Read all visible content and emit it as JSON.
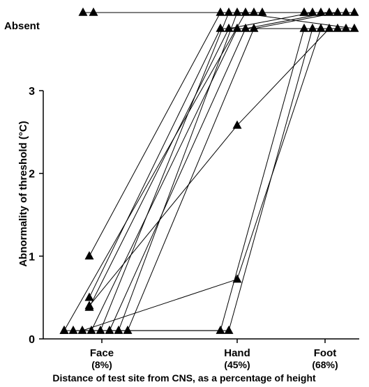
{
  "chart_data": {
    "type": "line",
    "title": "",
    "xlabel": "Distance of test site from CNS, as a percentage of height",
    "ylabel": "Abnormality of threshold (°C)",
    "x_categories": [
      {
        "name": "Face",
        "pct": "(8%)",
        "x": 8
      },
      {
        "name": "Hand",
        "pct": "(45%)",
        "x": 45
      },
      {
        "name": "Foot",
        "pct": "(68%)",
        "x": 68
      }
    ],
    "y_ticks": [
      "0",
      "1",
      "2",
      "3"
    ],
    "ylim": [
      0,
      3
    ],
    "absent_label": "Absent",
    "absent_levels": [
      "Absent-high",
      "Absent-low"
    ],
    "marker": "triangle",
    "color": "#000000",
    "subjects": [
      {
        "face": 0.1,
        "hand": 0.1,
        "foot": "Absent-low"
      },
      {
        "face": 0.1,
        "hand": 0.1,
        "foot": "Absent-low"
      },
      {
        "face": 0.1,
        "hand": 0.72,
        "foot": "Absent-low"
      },
      {
        "face": 0.4,
        "hand": 2.58,
        "foot": "Absent-low"
      },
      {
        "face": 1.0,
        "hand": "Absent-high",
        "foot": "Absent-high"
      },
      {
        "face": 0.5,
        "hand": "Absent-low",
        "foot": "Absent-low"
      },
      {
        "face": 0.38,
        "hand": "Absent-low",
        "foot": "Absent-high"
      },
      {
        "face": 0.1,
        "hand": "Absent-low",
        "foot": "Absent-low"
      },
      {
        "face": 0.1,
        "hand": "Absent-high",
        "foot": "Absent-high"
      },
      {
        "face": 0.1,
        "hand": "Absent-low",
        "foot": "Absent-high"
      },
      {
        "face": 0.1,
        "hand": "Absent-high",
        "foot": "Absent-low"
      },
      {
        "face": 0.1,
        "hand": "Absent-low",
        "foot": "Absent-high"
      },
      {
        "face": 0.1,
        "hand": "Absent-high",
        "foot": "Absent-high"
      },
      {
        "face": "Absent-high",
        "hand": "Absent-high",
        "foot": "Absent-high"
      },
      {
        "face": "Absent-high",
        "hand": "Absent-high",
        "foot": "Absent-high"
      }
    ]
  }
}
